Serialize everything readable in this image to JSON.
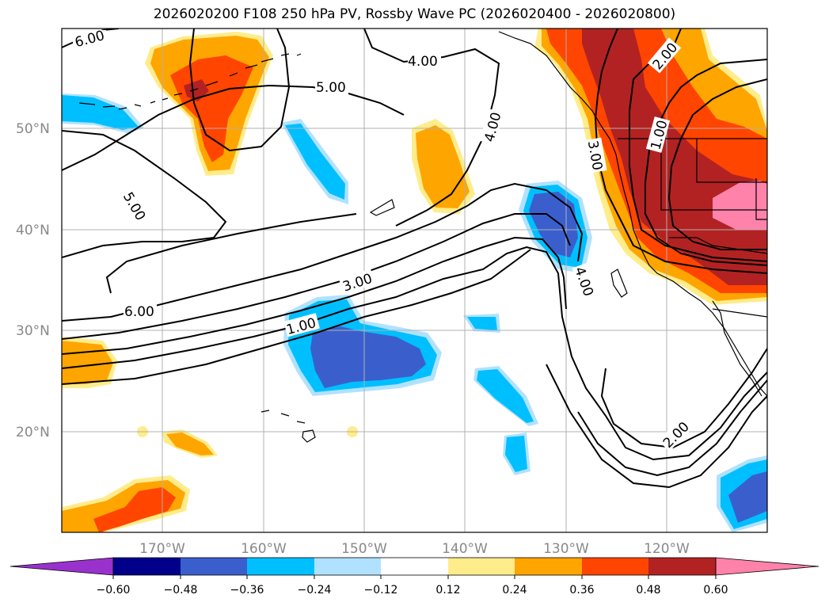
{
  "title": "2026020200 F108 250 hPa PV, Rossby Wave PC (2026020400 - 2026020800)",
  "colors": {
    "neg_0_60": "#9932cc",
    "neg_0_48": "#00008b",
    "neg_0_36": "#3a5fcd",
    "neg_0_24": "#00bfff",
    "neg_0_12": "#b0e2ff",
    "neutral": "#ffffff",
    "pos_0_12": "#ffec8b",
    "pos_0_24": "#ffa500",
    "pos_0_36": "#ff4500",
    "pos_0_48": "#b22222",
    "pos_0_60": "#ff82ab",
    "gridline": "#b0b0b0",
    "contour": "#000000",
    "coastline": "#000000"
  },
  "lat_labels": [
    "50°N",
    "40°N",
    "30°N",
    "20°N"
  ],
  "lon_labels": [
    "170°W",
    "160°W",
    "150°W",
    "140°W",
    "130°W",
    "120°W"
  ],
  "contour_labels": {
    "c6_top": "6.00",
    "c4_top": "4.00",
    "c5_top": "5.00",
    "c5_left": "5.00",
    "c6_left": "6.00",
    "c3_mid": "3.00",
    "c1_mid": "1.00",
    "c4_right": "4.00",
    "c4_coast": "4.00",
    "c3_coast": "3.00",
    "c2_top": "2.00",
    "c1_top": "1.00",
    "c2_bottom": "2.00"
  },
  "colorbar": {
    "ticks": [
      "−0.60",
      "−0.48",
      "−0.36",
      "−0.24",
      "−0.12",
      "0.12",
      "0.24",
      "0.36",
      "0.48",
      "0.60"
    ]
  },
  "chart_data": {
    "type": "map",
    "title": "2026020200 F108 250 hPa PV, Rossby Wave PC (2026020400 - 2026020800)",
    "variable_contours": "250 hPa PV",
    "variable_shading": "Rossby Wave PC",
    "contour_levels": [
      1.0,
      2.0,
      3.0,
      4.0,
      5.0,
      6.0
    ],
    "shading_levels": [
      -0.6,
      -0.48,
      -0.36,
      -0.24,
      -0.12,
      0.12,
      0.24,
      0.36,
      0.48,
      0.6
    ],
    "lon_range": [
      -180,
      -110
    ],
    "lat_range": [
      10,
      60
    ],
    "lat_ticks": [
      50,
      40,
      30,
      20
    ],
    "lon_ticks": [
      -170,
      -160,
      -150,
      -140,
      -130,
      -120
    ],
    "grid": true,
    "colorbar": "bottom, extended both ends"
  }
}
